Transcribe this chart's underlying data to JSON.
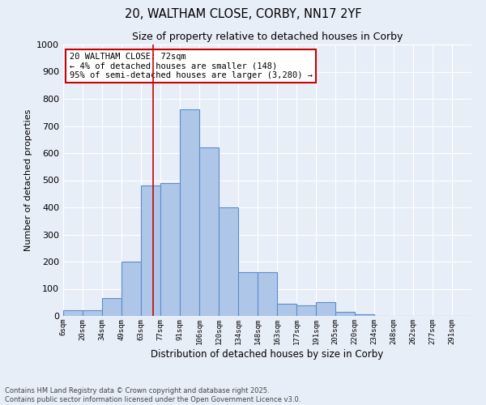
{
  "title1": "20, WALTHAM CLOSE, CORBY, NN17 2YF",
  "title2": "Size of property relative to detached houses in Corby",
  "xlabel": "Distribution of detached houses by size in Corby",
  "ylabel": "Number of detached properties",
  "bin_labels": [
    "6sqm",
    "20sqm",
    "34sqm",
    "49sqm",
    "63sqm",
    "77sqm",
    "91sqm",
    "106sqm",
    "120sqm",
    "134sqm",
    "148sqm",
    "163sqm",
    "177sqm",
    "191sqm",
    "205sqm",
    "220sqm",
    "234sqm",
    "248sqm",
    "262sqm",
    "277sqm",
    "291sqm"
  ],
  "bar_values": [
    20,
    20,
    65,
    200,
    480,
    490,
    760,
    620,
    400,
    160,
    160,
    45,
    40,
    50,
    15,
    5,
    0,
    0,
    0,
    0,
    0
  ],
  "bar_color": "#aec6e8",
  "bar_edge_color": "#5b8fc9",
  "background_color": "#e8eef7",
  "grid_color": "#ffffff",
  "property_sqm": 72,
  "bin_edges_sqm": [
    6,
    20,
    34,
    49,
    63,
    77,
    91,
    106,
    120,
    134,
    148,
    163,
    177,
    191,
    205,
    220,
    234,
    248,
    262,
    277,
    291
  ],
  "annotation_text": "20 WALTHAM CLOSE: 72sqm\n← 4% of detached houses are smaller (148)\n95% of semi-detached houses are larger (3,280) →",
  "annotation_box_color": "#ffffff",
  "annotation_box_edge": "#cc0000",
  "ylim": [
    0,
    1000
  ],
  "yticks": [
    0,
    100,
    200,
    300,
    400,
    500,
    600,
    700,
    800,
    900,
    1000
  ],
  "footnote": "Contains HM Land Registry data © Crown copyright and database right 2025.\nContains public sector information licensed under the Open Government Licence v3.0.",
  "red_line_color": "#cc0000",
  "line_bin_idx_low": 4,
  "line_bin_idx_high": 5
}
